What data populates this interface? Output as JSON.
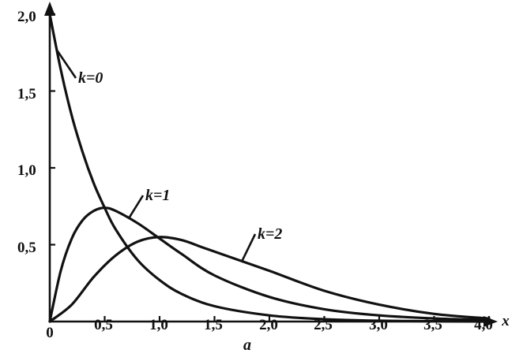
{
  "chart_data": {
    "type": "line",
    "xlabel": "x",
    "ylabel": "",
    "caption": "a",
    "xlim": [
      0,
      4.0
    ],
    "ylim": [
      0,
      2.0
    ],
    "x_ticks": [
      0.5,
      1.0,
      1.5,
      2.0,
      2.5,
      3.0,
      3.5,
      4.0
    ],
    "x_tick_labels": [
      "0,5",
      "1,0",
      "1,5",
      "2,0",
      "2,5",
      "3,0",
      "3,5",
      "4,0"
    ],
    "y_ticks": [
      0.5,
      1.0,
      1.5,
      2.0
    ],
    "y_tick_labels": [
      "0,5",
      "1,0",
      "1,5",
      "2,0"
    ],
    "origin_label": "0",
    "grid": false,
    "series": [
      {
        "name": "k=0",
        "x": [
          0,
          0.1,
          0.2,
          0.3,
          0.4,
          0.5,
          0.6,
          0.8,
          1.0,
          1.2,
          1.5,
          2.0,
          2.5,
          3.0,
          3.5,
          4.0
        ],
        "y": [
          2.0,
          1.64,
          1.34,
          1.1,
          0.9,
          0.74,
          0.6,
          0.4,
          0.27,
          0.18,
          0.1,
          0.04,
          0.015,
          0.005,
          0.002,
          0.0
        ]
      },
      {
        "name": "k=1",
        "x": [
          0,
          0.1,
          0.2,
          0.3,
          0.4,
          0.5,
          0.6,
          0.8,
          1.0,
          1.2,
          1.5,
          2.0,
          2.5,
          3.0,
          3.5,
          4.0
        ],
        "y": [
          0.0,
          0.33,
          0.54,
          0.66,
          0.72,
          0.74,
          0.72,
          0.64,
          0.54,
          0.44,
          0.3,
          0.16,
          0.08,
          0.04,
          0.02,
          0.01
        ]
      },
      {
        "name": "k=2",
        "x": [
          0,
          0.2,
          0.4,
          0.6,
          0.8,
          1.0,
          1.2,
          1.4,
          1.6,
          2.0,
          2.5,
          3.0,
          3.5,
          4.0
        ],
        "y": [
          0.0,
          0.11,
          0.29,
          0.43,
          0.52,
          0.55,
          0.53,
          0.48,
          0.43,
          0.33,
          0.2,
          0.11,
          0.05,
          0.02
        ]
      }
    ]
  }
}
